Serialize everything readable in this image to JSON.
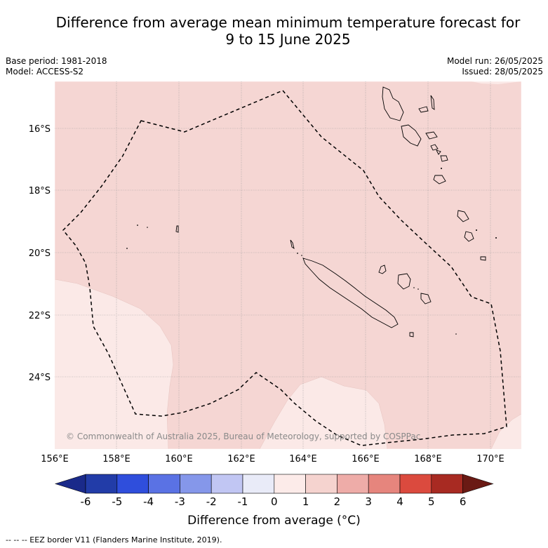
{
  "title": {
    "line1": "Difference from average mean minimum temperature forecast for",
    "line2": "9 to 15 June 2025"
  },
  "meta": {
    "base_period": "Base period: 1981-2018",
    "model": "Model: ACCESS-S2",
    "model_run": "Model run: 26/05/2025",
    "issued": "Issued: 28/05/2025"
  },
  "map": {
    "lon_range": [
      156,
      171
    ],
    "lat_range": [
      -26.1,
      -14.6
    ],
    "lon_ticks": [
      "156°E",
      "158°E",
      "160°E",
      "162°E",
      "164°E",
      "166°E",
      "168°E",
      "170°E"
    ],
    "lat_ticks": [
      "16°S",
      "18°S",
      "20°S",
      "22°S",
      "24°S"
    ],
    "copyright": "© Commonwealth of Australia 2025, Bureau of Meteorology, supported by COSPPac",
    "background_color": "#f5d6d3",
    "light_color": "#fbe9e7"
  },
  "colorbar": {
    "labels": [
      "-6",
      "-5",
      "-4",
      "-3",
      "-2",
      "-1",
      "0",
      "1",
      "2",
      "3",
      "4",
      "5",
      "6"
    ],
    "colors": [
      "#1a2a8a",
      "#223ca8",
      "#2f4edc",
      "#5a72e4",
      "#8597ea",
      "#c1c6f3",
      "#e9ebf8",
      "#fcebe9",
      "#f5d3cf",
      "#eeaca8",
      "#e6857d",
      "#db4a3e",
      "#a82a22",
      "#6a1a14"
    ],
    "label": "Difference from average (°C)"
  },
  "footer": "--  --  -- EEZ border V11 (Flanders Marine Institute, 2019)."
}
